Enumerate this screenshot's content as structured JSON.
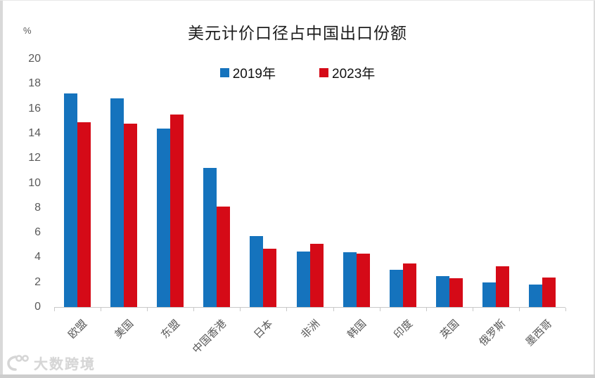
{
  "title": "美元计价口径占中国出口份额",
  "y_axis": {
    "unit": "%",
    "ticks": [
      "20",
      "18",
      "16",
      "14",
      "12",
      "10",
      "8",
      "6",
      "4",
      "2",
      "0"
    ]
  },
  "legend": {
    "items": [
      {
        "label": "2019年"
      },
      {
        "label": "2023年"
      }
    ]
  },
  "watermark": {
    "text": "大数跨境"
  },
  "colors": {
    "series_2019": "#1573bd",
    "series_2023": "#d50a17",
    "axis": "#c9c9c9",
    "label_gray": "#595959"
  },
  "chart_data": {
    "type": "bar",
    "title": "美元计价口径占中国出口份额",
    "categories": [
      "欧盟",
      "美国",
      "东盟",
      "中国香港",
      "日本",
      "非洲",
      "韩国",
      "印度",
      "英国",
      "俄罗斯",
      "墨西哥"
    ],
    "series": [
      {
        "name": "2019年",
        "color": "#1573bd",
        "values": [
          17.2,
          16.8,
          14.4,
          11.2,
          5.7,
          4.5,
          4.4,
          3.0,
          2.5,
          2.0,
          1.8
        ]
      },
      {
        "name": "2023年",
        "color": "#d50a17",
        "values": [
          14.9,
          14.8,
          15.5,
          8.1,
          4.7,
          5.1,
          4.3,
          3.5,
          2.3,
          3.3,
          2.4
        ]
      }
    ],
    "xlabel": "",
    "ylabel": "%",
    "ylim": [
      0,
      20
    ],
    "ytick_step": 2,
    "grid": false,
    "legend_position": "top-center"
  }
}
